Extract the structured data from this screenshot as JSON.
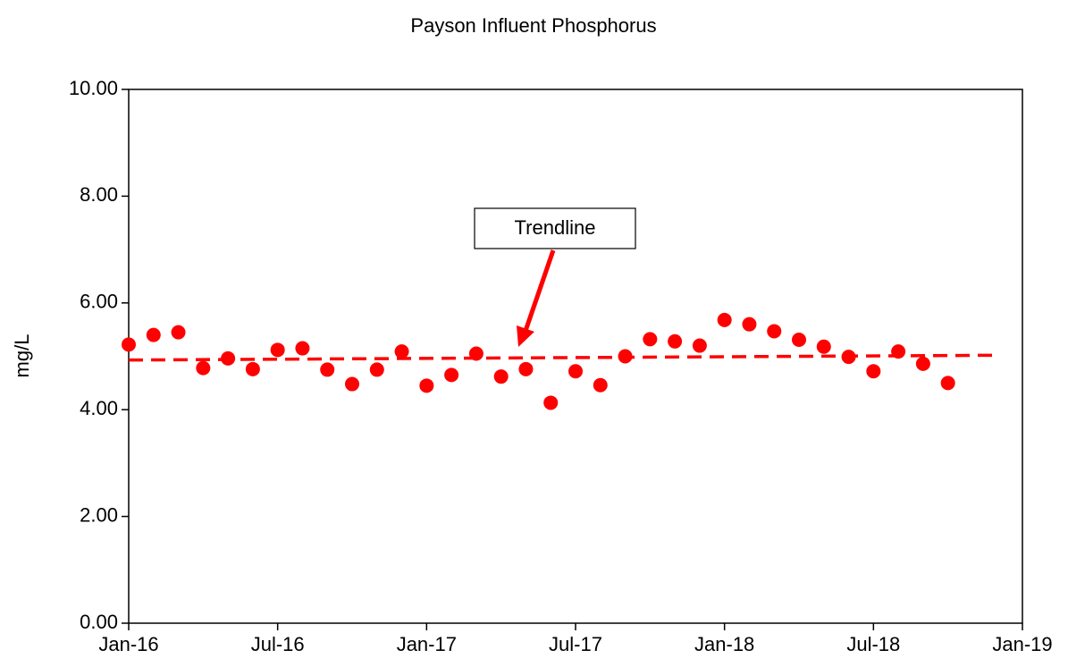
{
  "chart_data": {
    "type": "scatter",
    "title": "Payson Influent Phosphorus",
    "y_label": "mg/L",
    "x": [
      "2016-01",
      "2016-02",
      "2016-03",
      "2016-04",
      "2016-05",
      "2016-06",
      "2016-07",
      "2016-08",
      "2016-09",
      "2016-10",
      "2016-11",
      "2016-12",
      "2017-01",
      "2017-02",
      "2017-03",
      "2017-04",
      "2017-05",
      "2017-06",
      "2017-07",
      "2017-08",
      "2017-09",
      "2017-10",
      "2017-11",
      "2017-12",
      "2018-01",
      "2018-02",
      "2018-03",
      "2018-04",
      "2018-05",
      "2018-06",
      "2018-07",
      "2018-08",
      "2018-09",
      "2018-10"
    ],
    "series": [
      {
        "color": "#ff0000",
        "values": [
          5.22,
          5.4,
          5.45,
          4.78,
          4.96,
          4.76,
          5.12,
          5.15,
          4.75,
          4.48,
          4.75,
          5.09,
          4.45,
          4.65,
          5.05,
          4.62,
          4.76,
          4.13,
          4.72,
          4.46,
          5.0,
          5.32,
          5.28,
          5.2,
          5.68,
          5.6,
          5.47,
          5.31,
          5.18,
          4.99,
          4.72,
          5.09,
          4.86,
          4.5
        ]
      }
    ],
    "trendline": {
      "x": [
        "2016-01",
        "2018-12"
      ],
      "values": [
        4.93,
        5.02
      ],
      "color": "#ff0000"
    },
    "annotation": "Trendline",
    "xlim": [
      "2016-01",
      "2019-01"
    ],
    "xticks": [
      {
        "value": "2016-01",
        "label": "Jan-16"
      },
      {
        "value": "2016-07",
        "label": "Jul-16"
      },
      {
        "value": "2017-01",
        "label": "Jan-17"
      },
      {
        "value": "2017-07",
        "label": "Jul-17"
      },
      {
        "value": "2018-01",
        "label": "Jan-18"
      },
      {
        "value": "2018-07",
        "label": "Jul-18"
      },
      {
        "value": "2019-01",
        "label": "Jan-19"
      }
    ],
    "ylim": [
      0,
      10
    ],
    "yticks": [
      {
        "value": 0,
        "label": "0.00"
      },
      {
        "value": 2,
        "label": "2.00"
      },
      {
        "value": 4,
        "label": "4.00"
      },
      {
        "value": 6,
        "label": "6.00"
      },
      {
        "value": 8,
        "label": "8.00"
      },
      {
        "value": 10,
        "label": "10.00"
      }
    ]
  }
}
